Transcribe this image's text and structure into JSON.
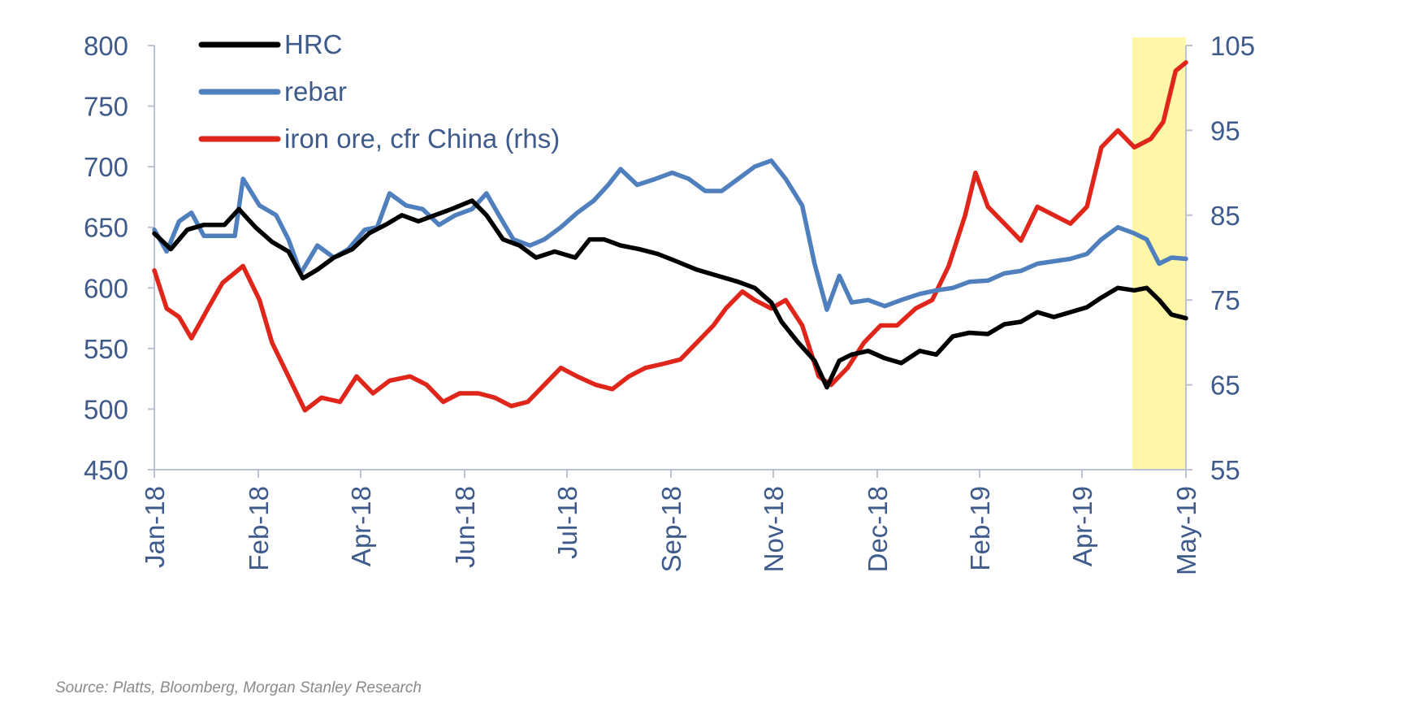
{
  "colors": {
    "axis": "#3f5b8c",
    "hrc": "#000000",
    "rebar": "#4f7fbd",
    "iron_ore": "#e0251b",
    "highlight": "#fff6a8"
  },
  "source": "Source: Platts, Bloomberg, Morgan Stanley Research",
  "chart_data": {
    "type": "line",
    "x_type": "date",
    "x_ticks": [
      "Jan-18",
      "Feb-18",
      "Apr-18",
      "Jun-18",
      "Jul-18",
      "Sep-18",
      "Nov-18",
      "Dec-18",
      "Feb-19",
      "Apr-19",
      "May-19"
    ],
    "x_range": [
      "2018-01-02",
      "2019-05-17"
    ],
    "y_left": {
      "range": [
        450,
        800
      ],
      "ticks": [
        "800",
        "750",
        "700",
        "650",
        "600",
        "550",
        "500",
        "450"
      ]
    },
    "y_right": {
      "range": [
        55,
        105
      ],
      "ticks": [
        "105",
        "95",
        "85",
        "75",
        "65",
        "55"
      ]
    },
    "highlight_range": [
      "2019-04-21",
      "2019-05-17"
    ],
    "legend": [
      "HRC",
      "rebar",
      "iron ore, cfr China (rhs)"
    ],
    "grid": false,
    "series": [
      {
        "name": "HRC",
        "axis": "left",
        "points": [
          [
            "2018-01-02",
            645
          ],
          [
            "2018-01-10",
            632
          ],
          [
            "2018-01-18",
            648
          ],
          [
            "2018-01-26",
            652
          ],
          [
            "2018-02-05",
            652
          ],
          [
            "2018-02-12",
            665
          ],
          [
            "2018-02-20",
            650
          ],
          [
            "2018-02-28",
            638
          ],
          [
            "2018-03-08",
            630
          ],
          [
            "2018-03-15",
            608
          ],
          [
            "2018-03-22",
            615
          ],
          [
            "2018-03-30",
            625
          ],
          [
            "2018-04-08",
            632
          ],
          [
            "2018-04-16",
            645
          ],
          [
            "2018-04-24",
            652
          ],
          [
            "2018-05-02",
            660
          ],
          [
            "2018-05-10",
            655
          ],
          [
            "2018-05-18",
            660
          ],
          [
            "2018-05-26",
            665
          ],
          [
            "2018-06-05",
            672
          ],
          [
            "2018-06-12",
            660
          ],
          [
            "2018-06-20",
            640
          ],
          [
            "2018-06-28",
            635
          ],
          [
            "2018-07-06",
            625
          ],
          [
            "2018-07-15",
            630
          ],
          [
            "2018-07-25",
            625
          ],
          [
            "2018-08-01",
            640
          ],
          [
            "2018-08-08",
            640
          ],
          [
            "2018-08-16",
            635
          ],
          [
            "2018-08-25",
            632
          ],
          [
            "2018-09-03",
            628
          ],
          [
            "2018-09-12",
            622
          ],
          [
            "2018-09-22",
            615
          ],
          [
            "2018-10-02",
            610
          ],
          [
            "2018-10-12",
            605
          ],
          [
            "2018-10-20",
            600
          ],
          [
            "2018-10-28",
            588
          ],
          [
            "2018-11-02",
            572
          ],
          [
            "2018-11-10",
            555
          ],
          [
            "2018-11-18",
            540
          ],
          [
            "2018-11-24",
            518
          ],
          [
            "2018-11-30",
            540
          ],
          [
            "2018-12-06",
            545
          ],
          [
            "2018-12-14",
            548
          ],
          [
            "2018-12-22",
            542
          ],
          [
            "2018-12-30",
            538
          ],
          [
            "2019-01-08",
            548
          ],
          [
            "2019-01-16",
            545
          ],
          [
            "2019-01-24",
            560
          ],
          [
            "2019-02-01",
            563
          ],
          [
            "2019-02-10",
            562
          ],
          [
            "2019-02-18",
            570
          ],
          [
            "2019-02-26",
            572
          ],
          [
            "2019-03-06",
            580
          ],
          [
            "2019-03-14",
            576
          ],
          [
            "2019-03-22",
            580
          ],
          [
            "2019-03-30",
            584
          ],
          [
            "2019-04-06",
            592
          ],
          [
            "2019-04-14",
            600
          ],
          [
            "2019-04-22",
            598
          ],
          [
            "2019-04-28",
            600
          ],
          [
            "2019-05-04",
            590
          ],
          [
            "2019-05-10",
            578
          ],
          [
            "2019-05-17",
            575
          ]
        ]
      },
      {
        "name": "rebar",
        "axis": "left",
        "points": [
          [
            "2018-01-02",
            648
          ],
          [
            "2018-01-08",
            630
          ],
          [
            "2018-01-14",
            655
          ],
          [
            "2018-01-20",
            662
          ],
          [
            "2018-01-26",
            643
          ],
          [
            "2018-02-02",
            643
          ],
          [
            "2018-02-10",
            643
          ],
          [
            "2018-02-14",
            690
          ],
          [
            "2018-02-22",
            668
          ],
          [
            "2018-03-02",
            660
          ],
          [
            "2018-03-08",
            640
          ],
          [
            "2018-03-14",
            612
          ],
          [
            "2018-03-22",
            635
          ],
          [
            "2018-03-30",
            625
          ],
          [
            "2018-04-06",
            632
          ],
          [
            "2018-04-14",
            648
          ],
          [
            "2018-04-20",
            650
          ],
          [
            "2018-04-26",
            678
          ],
          [
            "2018-05-04",
            668
          ],
          [
            "2018-05-12",
            665
          ],
          [
            "2018-05-20",
            652
          ],
          [
            "2018-05-28",
            660
          ],
          [
            "2018-06-05",
            665
          ],
          [
            "2018-06-12",
            678
          ],
          [
            "2018-06-18",
            660
          ],
          [
            "2018-06-25",
            640
          ],
          [
            "2018-07-03",
            635
          ],
          [
            "2018-07-10",
            640
          ],
          [
            "2018-07-18",
            650
          ],
          [
            "2018-07-26",
            662
          ],
          [
            "2018-08-03",
            672
          ],
          [
            "2018-08-10",
            685
          ],
          [
            "2018-08-16",
            698
          ],
          [
            "2018-08-24",
            685
          ],
          [
            "2018-09-02",
            690
          ],
          [
            "2018-09-10",
            695
          ],
          [
            "2018-09-18",
            690
          ],
          [
            "2018-09-26",
            680
          ],
          [
            "2018-10-04",
            680
          ],
          [
            "2018-10-12",
            690
          ],
          [
            "2018-10-20",
            700
          ],
          [
            "2018-10-28",
            705
          ],
          [
            "2018-11-04",
            690
          ],
          [
            "2018-11-12",
            668
          ],
          [
            "2018-11-18",
            620
          ],
          [
            "2018-11-24",
            582
          ],
          [
            "2018-11-30",
            610
          ],
          [
            "2018-12-06",
            588
          ],
          [
            "2018-12-14",
            590
          ],
          [
            "2018-12-22",
            585
          ],
          [
            "2018-12-30",
            590
          ],
          [
            "2019-01-08",
            595
          ],
          [
            "2019-01-16",
            598
          ],
          [
            "2019-01-24",
            600
          ],
          [
            "2019-02-01",
            605
          ],
          [
            "2019-02-10",
            606
          ],
          [
            "2019-02-18",
            612
          ],
          [
            "2019-02-26",
            614
          ],
          [
            "2019-03-06",
            620
          ],
          [
            "2019-03-14",
            622
          ],
          [
            "2019-03-22",
            624
          ],
          [
            "2019-03-30",
            628
          ],
          [
            "2019-04-06",
            640
          ],
          [
            "2019-04-14",
            650
          ],
          [
            "2019-04-22",
            645
          ],
          [
            "2019-04-28",
            640
          ],
          [
            "2019-05-04",
            620
          ],
          [
            "2019-05-10",
            625
          ],
          [
            "2019-05-17",
            624
          ]
        ]
      },
      {
        "name": "iron ore, cfr China (rhs)",
        "axis": "right",
        "points": [
          [
            "2018-01-02",
            78.5
          ],
          [
            "2018-01-08",
            74
          ],
          [
            "2018-01-14",
            73
          ],
          [
            "2018-01-20",
            70.5
          ],
          [
            "2018-01-28",
            74
          ],
          [
            "2018-02-04",
            77
          ],
          [
            "2018-02-14",
            79
          ],
          [
            "2018-02-22",
            75
          ],
          [
            "2018-02-28",
            70
          ],
          [
            "2018-03-08",
            66
          ],
          [
            "2018-03-16",
            62
          ],
          [
            "2018-03-24",
            63.5
          ],
          [
            "2018-04-02",
            63
          ],
          [
            "2018-04-10",
            66
          ],
          [
            "2018-04-18",
            64
          ],
          [
            "2018-04-26",
            65.5
          ],
          [
            "2018-05-06",
            66
          ],
          [
            "2018-05-14",
            65
          ],
          [
            "2018-05-22",
            63
          ],
          [
            "2018-05-30",
            64
          ],
          [
            "2018-06-08",
            64
          ],
          [
            "2018-06-16",
            63.5
          ],
          [
            "2018-06-24",
            62.5
          ],
          [
            "2018-07-02",
            63
          ],
          [
            "2018-07-10",
            65
          ],
          [
            "2018-07-18",
            67
          ],
          [
            "2018-07-26",
            66
          ],
          [
            "2018-08-04",
            65
          ],
          [
            "2018-08-12",
            64.5
          ],
          [
            "2018-08-20",
            66
          ],
          [
            "2018-08-28",
            67
          ],
          [
            "2018-09-06",
            67.5
          ],
          [
            "2018-09-14",
            68
          ],
          [
            "2018-09-22",
            70
          ],
          [
            "2018-09-30",
            72
          ],
          [
            "2018-10-06",
            74
          ],
          [
            "2018-10-14",
            76
          ],
          [
            "2018-10-20",
            75
          ],
          [
            "2018-10-28",
            74
          ],
          [
            "2018-11-04",
            75
          ],
          [
            "2018-11-12",
            72
          ],
          [
            "2018-11-20",
            66
          ],
          [
            "2018-11-26",
            65
          ],
          [
            "2018-12-04",
            67
          ],
          [
            "2018-12-12",
            70
          ],
          [
            "2018-12-20",
            72
          ],
          [
            "2018-12-28",
            72
          ],
          [
            "2019-01-06",
            74
          ],
          [
            "2019-01-14",
            75
          ],
          [
            "2019-01-22",
            79
          ],
          [
            "2019-01-30",
            85
          ],
          [
            "2019-02-04",
            90
          ],
          [
            "2019-02-10",
            86
          ],
          [
            "2019-02-18",
            84
          ],
          [
            "2019-02-26",
            82
          ],
          [
            "2019-03-06",
            86
          ],
          [
            "2019-03-14",
            85
          ],
          [
            "2019-03-22",
            84
          ],
          [
            "2019-03-30",
            86
          ],
          [
            "2019-04-06",
            93
          ],
          [
            "2019-04-14",
            95
          ],
          [
            "2019-04-22",
            93
          ],
          [
            "2019-04-30",
            94
          ],
          [
            "2019-05-06",
            96
          ],
          [
            "2019-05-12",
            102
          ],
          [
            "2019-05-17",
            103
          ]
        ]
      }
    ]
  }
}
